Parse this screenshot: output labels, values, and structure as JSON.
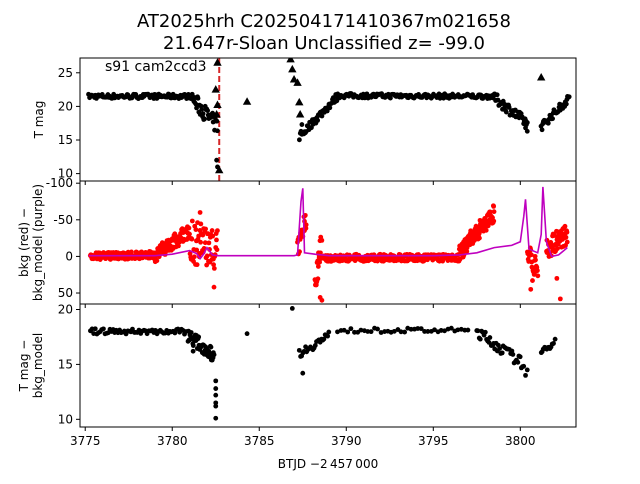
{
  "figure": {
    "title_line1": "AT2025hrh  C202504171410367m021658",
    "title_line2": "21.647r-Sloan Unclassified z= -99.0",
    "xlabel": "BTJD −2 457 000"
  },
  "chart_data": [
    {
      "type": "scatter",
      "title": "AT2025hrh  C202504171410367m021658 21.647r-Sloan Unclassified z= -99.0",
      "annotation": "s91 cam2ccd3",
      "ylabel": "T mag",
      "xlim": [
        3774.7,
        3803.2
      ],
      "ylim": [
        27.2,
        8.9
      ],
      "y_inverted": true,
      "y_ticks": [
        10,
        15,
        20,
        25
      ],
      "x_ticks": [
        3775,
        3780,
        3785,
        3790,
        3795,
        3800
      ],
      "vline": {
        "x": 3782.7,
        "color": "#d62728",
        "style": "dashed"
      },
      "series": [
        {
          "marker": "circle",
          "color": "#000000",
          "segments": [
            {
              "x0": 3775.2,
              "x1": 3781.2,
              "y0": 21.5,
              "y1": 21.5,
              "n": 110,
              "jit": 0.35
            },
            {
              "x0": 3781.2,
              "x1": 3782.6,
              "y0": 21.0,
              "y1": 17.0,
              "n": 35,
              "jit": 1.2
            },
            {
              "x0": 3787.3,
              "x1": 3789.5,
              "y0": 15.5,
              "y1": 21.5,
              "n": 45,
              "jit": 0.6
            },
            {
              "x0": 3789.5,
              "x1": 3798.5,
              "y0": 21.6,
              "y1": 21.5,
              "n": 140,
              "jit": 0.35
            },
            {
              "x0": 3798.5,
              "x1": 3800.4,
              "y0": 21.3,
              "y1": 17.5,
              "n": 45,
              "jit": 0.8
            },
            {
              "x0": 3801.2,
              "x1": 3802.8,
              "y0": 17.0,
              "y1": 21.2,
              "n": 40,
              "jit": 0.6
            }
          ],
          "points": [
            [
              3782.6,
              11.0
            ],
            [
              3782.55,
              12.0
            ],
            [
              3787.4,
              16.3
            ],
            [
              3787.45,
              17.3
            ],
            [
              3800.4,
              16.3
            ],
            [
              3800.3,
              16.8
            ]
          ]
        },
        {
          "marker": "triangle",
          "color": "#000000",
          "points": [
            [
              3782.55,
              18.8
            ],
            [
              3782.6,
              20.2
            ],
            [
              3782.5,
              22.5
            ],
            [
              3782.6,
              26.5
            ],
            [
              3784.3,
              20.7
            ],
            [
              3786.9,
              25.5
            ],
            [
              3787.0,
              24.0
            ],
            [
              3787.2,
              23.5
            ],
            [
              3787.3,
              20.6
            ],
            [
              3787.35,
              18.8
            ],
            [
              3786.8,
              27.0
            ],
            [
              3801.2,
              24.3
            ],
            [
              3782.7,
              10.5
            ]
          ]
        }
      ]
    },
    {
      "type": "scatter",
      "ylabel": "bkg (red) − bkg_model (purple)",
      "xlim": [
        3774.7,
        3803.2
      ],
      "ylim": [
        -103,
        65
      ],
      "y_ticks": [
        50,
        0,
        -50,
        -100
      ],
      "series": [
        {
          "name": "bkg",
          "marker": "circle",
          "color": "#ff0000",
          "segments": [
            {
              "x0": 3775.3,
              "x1": 3779.0,
              "y0": 0.0,
              "y1": -2.0,
              "n": 180,
              "jit": 5
            },
            {
              "x0": 3779.0,
              "x1": 3781.0,
              "y0": -2.0,
              "y1": -35.0,
              "n": 90,
              "jit": 10
            },
            {
              "x0": 3781.0,
              "x1": 3782.6,
              "y0": -20.0,
              "y1": -10.0,
              "n": 60,
              "jit": 30
            },
            {
              "x0": 3787.2,
              "x1": 3787.7,
              "y0": -10.0,
              "y1": -50.0,
              "n": 20,
              "jit": 15
            },
            {
              "x0": 3788.2,
              "x1": 3788.6,
              "y0": 30.0,
              "y1": -15.0,
              "n": 20,
              "jit": 20
            },
            {
              "x0": 3788.7,
              "x1": 3796.5,
              "y0": 2.0,
              "y1": 2.0,
              "n": 260,
              "jit": 5
            },
            {
              "x0": 3796.5,
              "x1": 3798.5,
              "y0": -5.0,
              "y1": -60.0,
              "n": 120,
              "jit": 12
            },
            {
              "x0": 3800.4,
              "x1": 3801.0,
              "y0": -10.0,
              "y1": 20.0,
              "n": 25,
              "jit": 15
            },
            {
              "x0": 3801.5,
              "x1": 3802.7,
              "y0": -10.0,
              "y1": -30.0,
              "n": 60,
              "jit": 15
            }
          ],
          "points": [
            [
              3788.5,
              56
            ],
            [
              3788.6,
              60
            ],
            [
              3802.3,
              58
            ],
            [
              3802.1,
              30
            ],
            [
              3800.6,
              45
            ],
            [
              3800.7,
              33
            ],
            [
              3787.6,
              -48
            ],
            [
              3781.6,
              -60
            ],
            [
              3782.4,
              42
            ]
          ]
        },
        {
          "name": "bkg_model",
          "marker": "line",
          "color": "#bf00bf",
          "line": [
            [
              3775.2,
              -1
            ],
            [
              3779,
              -1
            ],
            [
              3780,
              -3
            ],
            [
              3781,
              -8
            ],
            [
              3781.4,
              -4
            ],
            [
              3781.6,
              3
            ],
            [
              3781.8,
              -3
            ],
            [
              3782.0,
              -12
            ],
            [
              3782.3,
              -2
            ],
            [
              3782.6,
              -1
            ],
            [
              3787.0,
              -1
            ],
            [
              3787.2,
              -2
            ],
            [
              3787.4,
              -75
            ],
            [
              3787.5,
              -93
            ],
            [
              3787.6,
              -5
            ],
            [
              3788.2,
              -3
            ],
            [
              3789,
              -1
            ],
            [
              3795,
              -1
            ],
            [
              3796.5,
              -2
            ],
            [
              3797.5,
              -5
            ],
            [
              3798.5,
              -12
            ],
            [
              3799.5,
              -15
            ],
            [
              3800.0,
              -20
            ],
            [
              3800.2,
              -55
            ],
            [
              3800.3,
              -78
            ],
            [
              3800.5,
              -10
            ],
            [
              3801.0,
              -5
            ],
            [
              3801.2,
              -30
            ],
            [
              3801.3,
              -95
            ],
            [
              3801.5,
              -20
            ],
            [
              3801.8,
              0
            ],
            [
              3802.2,
              -2
            ],
            [
              3802.5,
              -8
            ],
            [
              3802.7,
              -12
            ]
          ]
        }
      ]
    },
    {
      "type": "scatter",
      "ylabel": "T mag − bkg_model",
      "xlim": [
        3774.7,
        3803.2
      ],
      "ylim": [
        20.5,
        9.3
      ],
      "y_inverted": true,
      "y_ticks": [
        10,
        15,
        20
      ],
      "series": [
        {
          "marker": "circle",
          "color": "#000000",
          "segments": [
            {
              "x0": 3775.3,
              "x1": 3780.8,
              "y0": 18.0,
              "y1": 18.0,
              "n": 60,
              "jit": 0.25
            },
            {
              "x0": 3780.9,
              "x1": 3782.4,
              "y0": 17.7,
              "y1": 15.8,
              "n": 50,
              "jit": 0.6
            },
            {
              "x0": 3787.3,
              "x1": 3789.0,
              "y0": 16.0,
              "y1": 17.6,
              "n": 25,
              "jit": 0.4
            },
            {
              "x0": 3789.5,
              "x1": 3797.0,
              "y0": 18.1,
              "y1": 18.1,
              "n": 40,
              "jit": 0.2
            },
            {
              "x0": 3797.5,
              "x1": 3800.2,
              "y0": 18.0,
              "y1": 15.0,
              "n": 40,
              "jit": 0.5
            },
            {
              "x0": 3801.2,
              "x1": 3801.9,
              "y0": 16.0,
              "y1": 17.0,
              "n": 12,
              "jit": 0.3
            }
          ],
          "points": [
            [
              3782.5,
              10.1
            ],
            [
              3782.5,
              11.2
            ],
            [
              3782.5,
              11.5
            ],
            [
              3782.5,
              12.2
            ],
            [
              3782.5,
              12.8
            ],
            [
              3782.5,
              13.5
            ],
            [
              3784.3,
              17.8
            ],
            [
              3786.9,
              20.1
            ],
            [
              3787.5,
              14.2
            ],
            [
              3800.3,
              14.0
            ],
            [
              3800.4,
              14.5
            ],
            [
              3802.0,
              17.3
            ],
            [
              3781.2,
              16.2
            ]
          ]
        }
      ]
    }
  ]
}
